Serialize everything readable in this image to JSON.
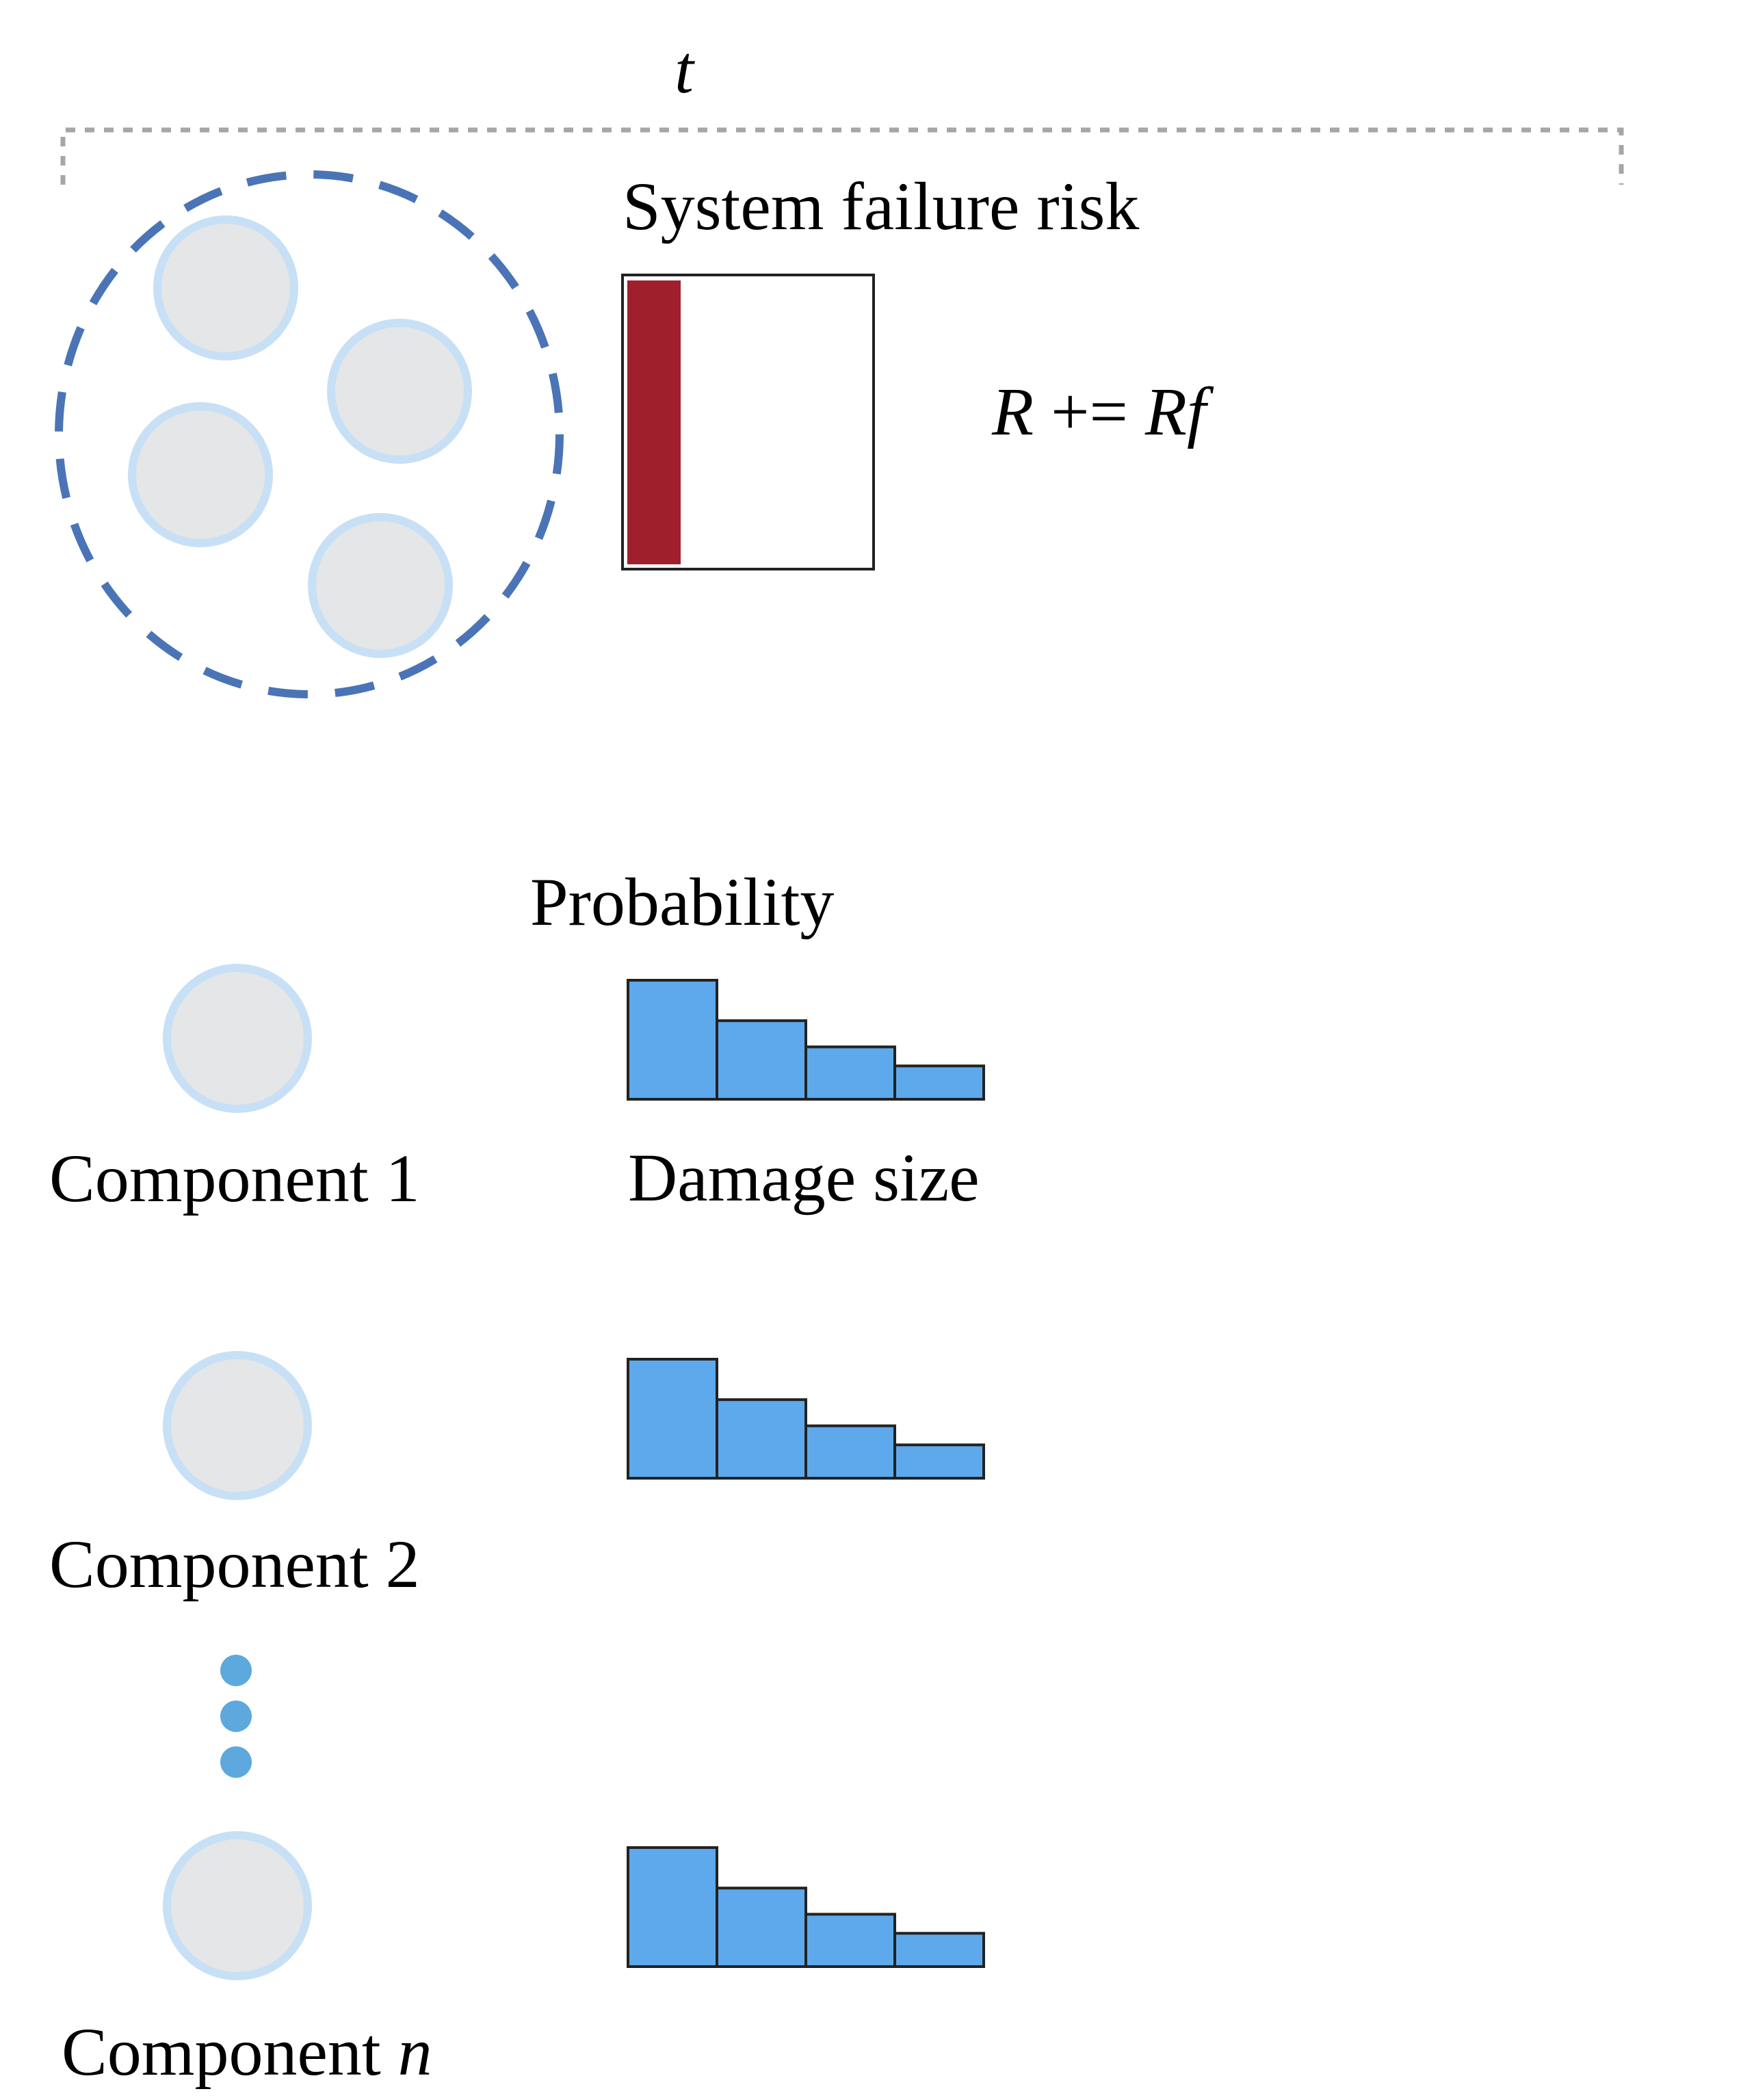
{
  "time_label": "t",
  "system": {
    "title": "System failure risk",
    "risk_fill_fraction": 0.22,
    "formula": {
      "r": "R",
      "op": " += ",
      "rf": "Rf"
    }
  },
  "histogram": {
    "ylabel": "Probability",
    "xlabel": "Damage size",
    "bins": [
      1.0,
      0.66,
      0.44,
      0.28
    ]
  },
  "components": [
    {
      "label": "Component 1"
    },
    {
      "label": "Component 2"
    },
    {
      "label_prefix": "Component ",
      "label_var": "n"
    }
  ],
  "colors": {
    "dashed_group": "#4a74b6",
    "circle_fill": "#e5e6e8",
    "circle_stroke": "#c7e0f6",
    "risk_bar": "#a01f2d",
    "hist_fill": "#5da9ec",
    "bracket": "#a6a6a6",
    "ellipsis_dot": "#5da9de"
  }
}
